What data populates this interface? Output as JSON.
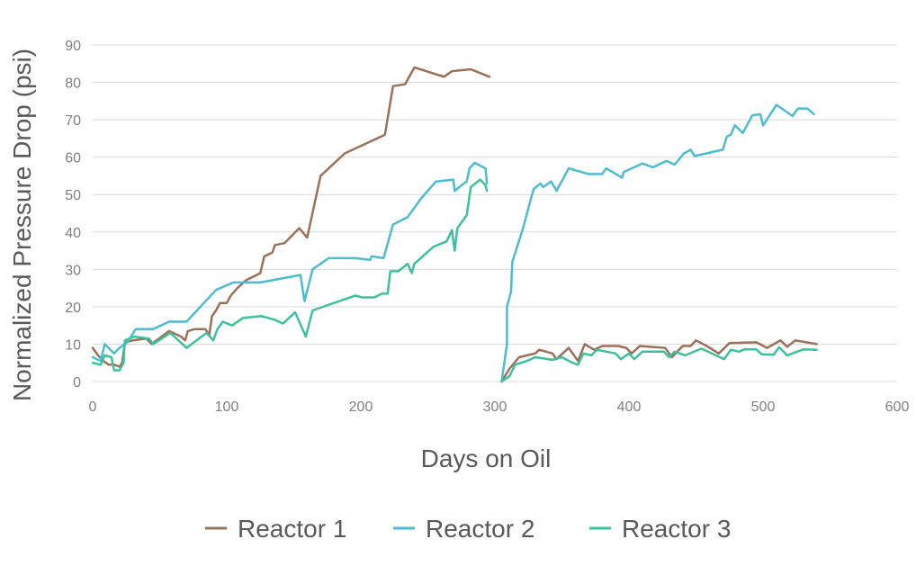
{
  "chart_data": {
    "type": "line",
    "title": "",
    "xlabel": "Days on Oil",
    "ylabel": "Normalized Pressure Drop (psi)",
    "xlim": [
      0,
      600
    ],
    "ylim": [
      0,
      90
    ],
    "xticks": [
      "0",
      "100",
      "200",
      "300",
      "400",
      "500",
      "600"
    ],
    "yticks": [
      "0",
      "10",
      "20",
      "30",
      "40",
      "50",
      "60",
      "70",
      "80",
      "90"
    ],
    "grid": "horizontal",
    "legend_position": "bottom",
    "series": [
      {
        "name": "Reactor 1",
        "color": "#9B715B",
        "segments": [
          [
            [
              0,
              9
            ],
            [
              4,
              7
            ],
            [
              8,
              5.5
            ],
            [
              12,
              4.5
            ],
            [
              16,
              4.5
            ],
            [
              20,
              4
            ],
            [
              22,
              5
            ],
            [
              24,
              10.5
            ],
            [
              30,
              11
            ],
            [
              40,
              11.5
            ],
            [
              44,
              10
            ],
            [
              57,
              13.5
            ],
            [
              66,
              12
            ],
            [
              69,
              11
            ],
            [
              71,
              13.5
            ],
            [
              76,
              14
            ],
            [
              84,
              14
            ],
            [
              87,
              12.5
            ],
            [
              89,
              17.5
            ],
            [
              92,
              19
            ],
            [
              95,
              21
            ],
            [
              100,
              21
            ],
            [
              103,
              23
            ],
            [
              108,
              25
            ],
            [
              114,
              27
            ],
            [
              125,
              29
            ],
            [
              128,
              33.5
            ],
            [
              134,
              34.5
            ],
            [
              136,
              36.5
            ],
            [
              143,
              37
            ],
            [
              154,
              41
            ],
            [
              160,
              38.5
            ],
            [
              170,
              55
            ],
            [
              188,
              61
            ],
            [
              218,
              66
            ],
            [
              224,
              79
            ],
            [
              233,
              79.5
            ],
            [
              240,
              84
            ],
            [
              262,
              81.5
            ],
            [
              268,
              83
            ],
            [
              282,
              83.5
            ],
            [
              296,
              81.5
            ]
          ],
          [
            [
              305,
              0
            ],
            [
              311,
              3.5
            ],
            [
              318,
              6.5
            ],
            [
              330,
              7.5
            ],
            [
              333,
              8.5
            ],
            [
              343,
              7.5
            ],
            [
              346,
              6
            ],
            [
              355,
              9
            ],
            [
              362,
              5.5
            ],
            [
              367,
              10
            ],
            [
              374,
              8.5
            ],
            [
              380,
              9.5
            ],
            [
              392,
              9.5
            ],
            [
              398,
              9
            ],
            [
              402,
              7.5
            ],
            [
              408,
              9.5
            ],
            [
              427,
              9
            ],
            [
              432,
              6.5
            ],
            [
              440,
              9.5
            ],
            [
              446,
              9.5
            ],
            [
              450,
              11
            ],
            [
              458,
              9.5
            ],
            [
              467,
              7.5
            ],
            [
              475,
              10.3
            ],
            [
              495,
              10.5
            ],
            [
              503,
              9
            ],
            [
              513,
              11
            ],
            [
              518,
              9.3
            ],
            [
              524,
              11
            ],
            [
              540,
              10
            ]
          ]
        ]
      },
      {
        "name": "Reactor 2",
        "color": "#4EBCD0",
        "segments": [
          [
            [
              0,
              6.5
            ],
            [
              6,
              5.5
            ],
            [
              9,
              10
            ],
            [
              16,
              7.5
            ],
            [
              20,
              9
            ],
            [
              26,
              10.5
            ],
            [
              32,
              14
            ],
            [
              45,
              14
            ],
            [
              57,
              16
            ],
            [
              70,
              16
            ],
            [
              92,
              24.5
            ],
            [
              105,
              26.5
            ],
            [
              125,
              26.5
            ],
            [
              155,
              28.5
            ],
            [
              158,
              21.5
            ],
            [
              164,
              30
            ],
            [
              176,
              33
            ],
            [
              196,
              33
            ],
            [
              207,
              32.5
            ],
            [
              208,
              33.5
            ],
            [
              217,
              33
            ],
            [
              224,
              42
            ],
            [
              235,
              44
            ],
            [
              245,
              49
            ],
            [
              256,
              53.5
            ],
            [
              269,
              54
            ],
            [
              270,
              51
            ],
            [
              277,
              53
            ],
            [
              279,
              53.5
            ],
            [
              281,
              57
            ],
            [
              285,
              58.5
            ],
            [
              293,
              57
            ],
            [
              294,
              53
            ]
          ],
          [
            [
              305,
              0
            ],
            [
              309,
              10
            ],
            [
              309,
              20
            ],
            [
              312,
              24
            ],
            [
              313,
              32
            ],
            [
              321,
              41
            ],
            [
              327,
              49
            ],
            [
              329,
              51.5
            ],
            [
              334,
              53
            ],
            [
              336,
              52
            ],
            [
              342,
              53.5
            ],
            [
              346,
              51
            ],
            [
              355,
              57
            ],
            [
              370,
              55.5
            ],
            [
              380,
              55.5
            ],
            [
              383,
              57
            ],
            [
              395,
              54.5
            ],
            [
              396,
              56
            ],
            [
              405,
              57.5
            ],
            [
              410,
              58.3
            ],
            [
              418,
              57.3
            ],
            [
              428,
              59
            ],
            [
              434,
              58
            ],
            [
              441,
              61
            ],
            [
              446,
              62
            ],
            [
              449,
              60.3
            ],
            [
              470,
              62
            ],
            [
              473,
              65.5
            ],
            [
              476,
              66
            ],
            [
              479,
              68.5
            ],
            [
              485,
              66.5
            ],
            [
              492,
              71.2
            ],
            [
              498,
              71.5
            ],
            [
              500,
              68.5
            ],
            [
              510,
              74
            ],
            [
              522,
              71
            ],
            [
              526,
              73
            ],
            [
              533,
              73
            ],
            [
              538,
              71.5
            ]
          ]
        ]
      },
      {
        "name": "Reactor 3",
        "color": "#3EC09C",
        "segments": [
          [
            [
              0,
              5
            ],
            [
              6,
              4.5
            ],
            [
              9,
              7
            ],
            [
              14,
              6.5
            ],
            [
              16,
              3
            ],
            [
              20,
              3
            ],
            [
              23,
              5
            ],
            [
              24,
              11
            ],
            [
              31,
              12
            ],
            [
              42,
              11.5
            ],
            [
              45,
              10
            ],
            [
              58,
              13
            ],
            [
              70,
              9
            ],
            [
              85,
              13
            ],
            [
              90,
              11
            ],
            [
              93,
              14
            ],
            [
              97,
              16
            ],
            [
              104,
              15
            ],
            [
              112,
              17
            ],
            [
              126,
              17.5
            ],
            [
              136,
              16.5
            ],
            [
              142,
              15.5
            ],
            [
              151,
              18.5
            ],
            [
              159,
              12
            ],
            [
              164,
              19
            ],
            [
              196,
              23
            ],
            [
              201,
              22.5
            ],
            [
              210,
              22.5
            ],
            [
              216,
              23.5
            ],
            [
              220,
              23.5
            ],
            [
              222,
              29.5
            ],
            [
              228,
              29.5
            ],
            [
              235,
              31.5
            ],
            [
              238,
              29
            ],
            [
              240,
              31.5
            ],
            [
              254,
              36
            ],
            [
              264,
              37.5
            ],
            [
              268,
              40.5
            ],
            [
              270,
              35
            ],
            [
              272,
              41
            ],
            [
              279,
              44.5
            ],
            [
              282,
              52
            ],
            [
              289,
              54
            ],
            [
              293,
              52.5
            ],
            [
              294,
              51
            ]
          ],
          [
            [
              305,
              0
            ],
            [
              311,
              1.5
            ],
            [
              315,
              4.5
            ],
            [
              324,
              5.5
            ],
            [
              330,
              6.5
            ],
            [
              343,
              5.8
            ],
            [
              350,
              6.5
            ],
            [
              358,
              5
            ],
            [
              362,
              4.5
            ],
            [
              366,
              7.5
            ],
            [
              372,
              7
            ],
            [
              376,
              8.5
            ],
            [
              390,
              7.5
            ],
            [
              394,
              6
            ],
            [
              400,
              7.5
            ],
            [
              404,
              6
            ],
            [
              410,
              8
            ],
            [
              426,
              8
            ],
            [
              430,
              6.5
            ],
            [
              434,
              8
            ],
            [
              442,
              7
            ],
            [
              454,
              8.8
            ],
            [
              471,
              6
            ],
            [
              476,
              8.5
            ],
            [
              482,
              8
            ],
            [
              486,
              8.6
            ],
            [
              495,
              8.6
            ],
            [
              499,
              7.3
            ],
            [
              508,
              7.2
            ],
            [
              512,
              9.2
            ],
            [
              518,
              7
            ],
            [
              530,
              8.6
            ],
            [
              540,
              8.5
            ]
          ]
        ]
      }
    ]
  }
}
